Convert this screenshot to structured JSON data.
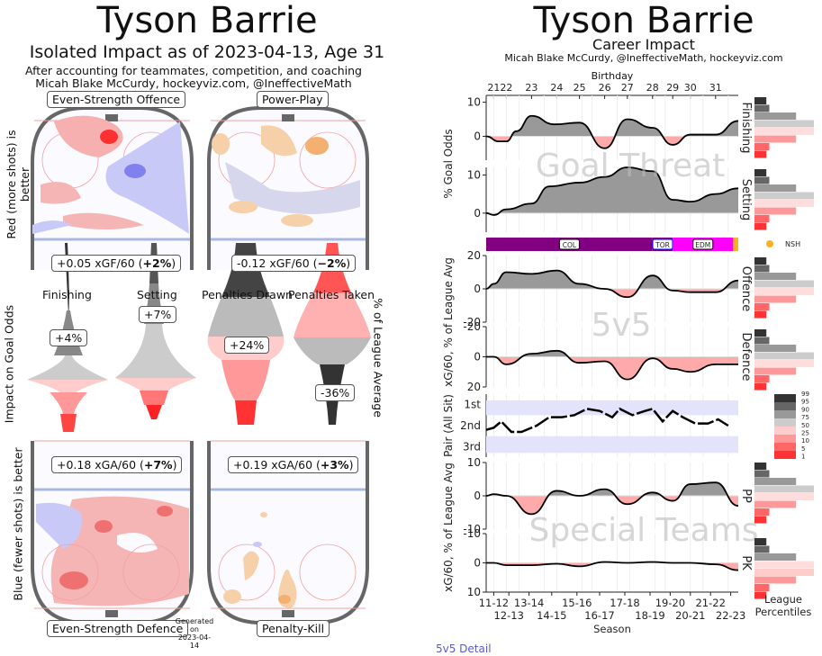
{
  "left": {
    "title": "Tyson Barrie",
    "subtitle": "Isolated Impact as of 2023-04-13, Age 31",
    "note1": "After accounting for teammates, competition, and coaching",
    "note2": "Micah Blake McCurdy, hockeyviz.com, @IneffectiveMath",
    "ylabel_top": "Red (more shots) is better",
    "ylabel_bottom": "Blue (fewer shots) is better",
    "rinks": {
      "es_offence": {
        "label": "Even-Strength Offence",
        "stat": "+0.05 xGF/60 (",
        "pct": "+2%",
        "close": ")"
      },
      "power_play": {
        "label": "Power-Play",
        "stat": "-0.12 xGF/60 (",
        "pct": "−2%",
        "close": ")"
      },
      "es_defence": {
        "label": "Even-Strength Defence",
        "stat": "+0.18 xGA/60 (",
        "pct": "+7%",
        "close": ")"
      },
      "penalty_kill": {
        "label": "Penalty-Kill",
        "stat": "+0.19 xGA/60 (",
        "pct": "+3%",
        "close": ")"
      }
    },
    "generated": [
      "Generated",
      "on",
      "2023-04-14"
    ],
    "violins": {
      "ylabel_left": "Impact on Goal Odds",
      "ylabel_right": "% of League Average",
      "items": [
        {
          "label": "Finishing",
          "value": "+4%"
        },
        {
          "label": "Setting",
          "value": "+7%"
        },
        {
          "label": "Penalties Drawn",
          "value": "+24%"
        },
        {
          "label": "Penalties Taken",
          "value": "-36%"
        }
      ]
    }
  },
  "right": {
    "title": "Tyson Barrie",
    "subtitle": "Career Impact",
    "credit": "Micah Blake McCurdy, @IneffectiveMath, hockeyviz.com",
    "birthday_label": "Birthday",
    "link": "5v5 Detail"
  },
  "chart_data": {
    "type": "area",
    "title": "Tyson Barrie Career Impact",
    "xlabel": "Season",
    "x_ticks_top_row": [
      "11-12",
      "13-14",
      "15-16",
      "17-18",
      "19-20",
      "21-22"
    ],
    "x_ticks_bottom_row": [
      "12-13",
      "14-15",
      "16-17",
      "18-19",
      "20-21",
      "22-23"
    ],
    "birthday_ticks": [
      "21",
      "22",
      "23",
      "24",
      "25",
      "26",
      "27",
      "28",
      "29",
      "30",
      "31"
    ],
    "x_range": [
      0,
      1
    ],
    "birthday_x": [
      0.03,
      0.08,
      0.18,
      0.28,
      0.37,
      0.47,
      0.56,
      0.66,
      0.74,
      0.81,
      0.91
    ],
    "season_x": [
      0.03,
      0.08,
      0.13,
      0.23,
      0.28,
      0.38,
      0.42,
      0.52,
      0.57,
      0.67,
      0.71,
      0.81,
      0.86,
      0.96
    ],
    "season_tick_labels": {
      "0.03": "11-12",
      "0.09": "12-13",
      "0.17": "13-14",
      "0.26": "14-15",
      "0.36": "15-16",
      "0.45": "16-17",
      "0.55": "17-18",
      "0.65": "18-19",
      "0.73": "19-20",
      "0.81": "20-21",
      "0.89": "21-22",
      "0.97": "22-23"
    },
    "goal_threat_label": "Goal Threat",
    "five_v_five_label": "5v5",
    "special_teams_label": "Special Teams",
    "panels": [
      {
        "name": "Finishing",
        "ylabel": "% Goal Odds",
        "yticks": [
          10,
          0
        ],
        "ylim": [
          -7,
          12
        ],
        "x": [
          0,
          0.05,
          0.08,
          0.12,
          0.18,
          0.27,
          0.37,
          0.47,
          0.56,
          0.66,
          0.74,
          0.81,
          0.91,
          1.0
        ],
        "y": [
          0,
          -1.5,
          -1.5,
          1.5,
          6,
          3.5,
          4,
          -3.5,
          5,
          2.5,
          -2.5,
          0.5,
          0.5,
          4.5
        ]
      },
      {
        "name": "Setting",
        "ylabel": "% Goal Odds",
        "yticks": [
          10,
          0
        ],
        "ylim": [
          -5,
          12
        ],
        "x": [
          0,
          0.03,
          0.08,
          0.18,
          0.25,
          0.37,
          0.47,
          0.56,
          0.66,
          0.74,
          0.81,
          0.91,
          1.0
        ],
        "y": [
          0,
          -0.5,
          1,
          2.5,
          7,
          8,
          9.5,
          12,
          11,
          3.5,
          3,
          5,
          6.5
        ]
      },
      {
        "name": "Offence",
        "ylabel": "xG/60, % of League Avg",
        "yticks": [
          20,
          0,
          -20
        ],
        "ylim": [
          -20,
          20
        ],
        "x": [
          0,
          0.03,
          0.08,
          0.18,
          0.28,
          0.37,
          0.47,
          0.56,
          0.66,
          0.74,
          0.81,
          0.91,
          1.0
        ],
        "y": [
          0,
          3,
          10,
          9,
          11,
          3,
          0,
          -5,
          8,
          -1,
          -2,
          -2,
          5
        ]
      },
      {
        "name": "Defence",
        "ylabel": "xG/60, % of League Avg",
        "yticks": [
          -20,
          0,
          20
        ],
        "ylim": [
          -20,
          20
        ],
        "inverted": true,
        "x": [
          0,
          0.03,
          0.08,
          0.18,
          0.28,
          0.37,
          0.47,
          0.56,
          0.66,
          0.74,
          0.81,
          0.91,
          1.0
        ],
        "y": [
          0,
          0,
          5,
          -2,
          -4,
          4,
          3,
          15,
          1,
          8,
          10,
          5,
          5
        ]
      },
      {
        "name": "Pair (All Sit)",
        "ylabel": "Pair (All Sit)",
        "categories": [
          "1st",
          "2nd",
          "3rd"
        ],
        "ylim": [
          1,
          3
        ],
        "x": [
          0,
          0.03,
          0.06,
          0.1,
          0.14,
          0.2,
          0.25,
          0.3,
          0.35,
          0.4,
          0.45,
          0.5,
          0.53,
          0.58,
          0.63,
          0.66,
          0.7,
          0.74,
          0.78,
          0.83,
          0.88,
          0.92,
          0.96
        ],
        "y": [
          2.2,
          2.1,
          1.8,
          2.3,
          2.3,
          2.0,
          1.6,
          1.6,
          1.5,
          1.2,
          1.3,
          1.6,
          1.2,
          1.5,
          1.3,
          1.2,
          1.8,
          1.3,
          1.6,
          1.9,
          1.9,
          1.7,
          2.0
        ]
      },
      {
        "name": "PP",
        "ylabel": "xG/60, % of League Avg",
        "yticks": [
          10,
          0,
          -10
        ],
        "ylim": [
          -10,
          10
        ],
        "x": [
          0,
          0.03,
          0.08,
          0.18,
          0.28,
          0.37,
          0.47,
          0.56,
          0.66,
          0.74,
          0.81,
          0.91,
          1.0
        ],
        "y": [
          0,
          0.5,
          0,
          -5.5,
          1.5,
          0,
          2,
          -2.5,
          1,
          -1.5,
          3.5,
          4,
          -3
        ]
      },
      {
        "name": "PK",
        "ylabel": "xG/60, % of League Avg",
        "yticks": [
          -10,
          0,
          10
        ],
        "ylim": [
          -10,
          10
        ],
        "inverted": true,
        "x": [
          0,
          0.03,
          0.08,
          0.18,
          0.28,
          0.37,
          0.47,
          0.56,
          0.66,
          0.74,
          0.81,
          0.91,
          1.0
        ],
        "y": [
          0,
          0,
          0.8,
          0.8,
          0.3,
          1.2,
          -0.3,
          0,
          -0.3,
          0,
          0,
          0.5,
          2.5
        ]
      }
    ],
    "teams": [
      {
        "name": "COL",
        "from": 0,
        "to": 0.66,
        "color": "#800080"
      },
      {
        "name": "TOR",
        "from": 0.66,
        "to": 0.74,
        "color": "#800080"
      },
      {
        "name": "EDM",
        "from": 0.74,
        "to": 0.98,
        "color": "#ff00ff"
      },
      {
        "name": "NSH",
        "from": 0.98,
        "to": 1.0,
        "color": "#ffb020"
      }
    ],
    "percentile_legend": {
      "title": "League Percentiles",
      "levels": [
        "99",
        "95",
        "90",
        "75",
        "50",
        "25",
        "10",
        "5",
        "1"
      ],
      "colors": [
        "#333333",
        "#666666",
        "#999999",
        "#cccccc",
        "#ffcccc",
        "#ff9999",
        "#ff6666",
        "#ff3333"
      ]
    },
    "percentile_hist": [
      {
        "panel": "Finishing",
        "widths": [
          0.2,
          0.25,
          0.7,
          1.0,
          1.0,
          0.7,
          0.25,
          0.2
        ],
        "highlight": 4
      },
      {
        "panel": "Setting",
        "widths": [
          0.2,
          0.25,
          0.7,
          1.0,
          1.0,
          0.7,
          0.25,
          0.2
        ],
        "highlight": 4
      },
      {
        "panel": "Offence",
        "widths": [
          0.2,
          0.25,
          0.7,
          1.0,
          1.0,
          0.7,
          0.25,
          0.2
        ],
        "highlight": 4
      },
      {
        "panel": "Defence",
        "widths": [
          0.2,
          0.25,
          0.7,
          1.0,
          1.0,
          0.7,
          0.25,
          0.2
        ],
        "highlight": 4
      },
      {
        "panel": "PP",
        "widths": [
          0.2,
          0.25,
          0.7,
          1.0,
          1.0,
          0.7,
          0.25,
          0.2
        ],
        "highlight": 4
      },
      {
        "panel": "PK",
        "widths": [
          0.2,
          0.25,
          0.7,
          1.0,
          1.0,
          0.7,
          0.25,
          0.2
        ],
        "highlight": 3
      }
    ]
  }
}
